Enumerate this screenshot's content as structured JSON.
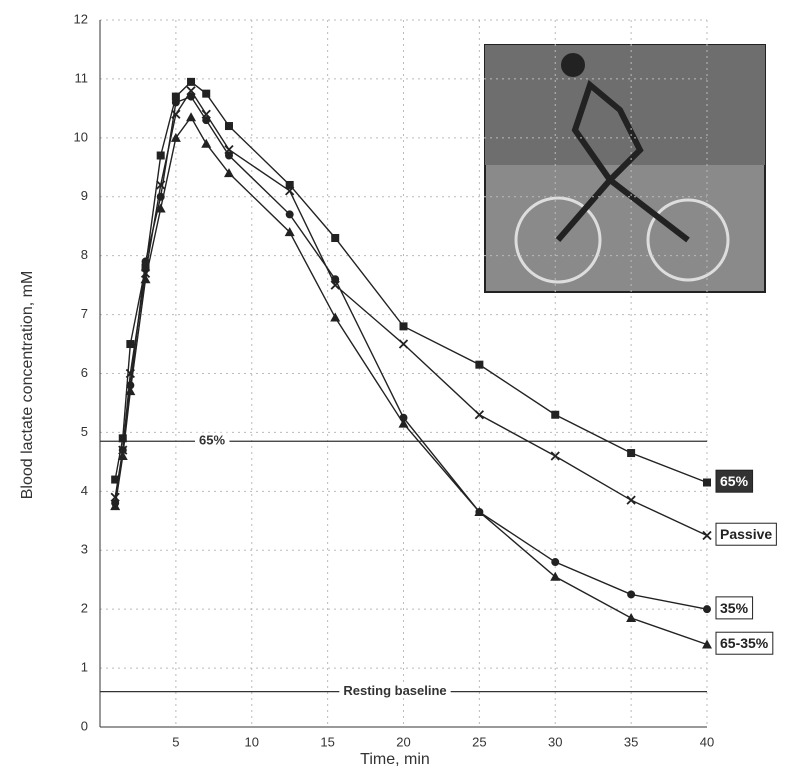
{
  "chart_data": {
    "type": "line",
    "y_label": "Blood lactate concentration, mM",
    "x_label": "Time, min",
    "x": [
      1,
      1.5,
      2,
      3,
      4,
      5,
      6,
      7,
      8.5,
      12.5,
      15.5,
      20,
      25,
      30,
      35,
      40
    ],
    "series": [
      {
        "name": "65%",
        "color": "#222222",
        "marker": "square",
        "values": [
          4.2,
          4.9,
          6.5,
          7.8,
          9.7,
          10.7,
          10.95,
          10.75,
          10.2,
          9.2,
          8.3,
          6.8,
          6.15,
          5.3,
          4.65,
          4.15
        ]
      },
      {
        "name": "Passive",
        "color": "#222222",
        "marker": "cross",
        "values": [
          3.9,
          4.7,
          6.0,
          7.7,
          9.2,
          10.4,
          10.8,
          10.4,
          9.8,
          9.1,
          7.5,
          6.5,
          5.3,
          4.6,
          3.85,
          3.25
        ]
      },
      {
        "name": "35%",
        "color": "#222222",
        "marker": "circle",
        "values": [
          3.8,
          4.7,
          5.8,
          7.9,
          9.0,
          10.6,
          10.7,
          10.3,
          9.7,
          8.7,
          7.6,
          5.25,
          3.65,
          2.8,
          2.25,
          2.0
        ]
      },
      {
        "name": "65-35%",
        "color": "#222222",
        "marker": "triangle",
        "values": [
          3.75,
          4.6,
          5.7,
          7.6,
          8.8,
          10.0,
          10.35,
          9.9,
          9.4,
          8.4,
          6.95,
          5.15,
          3.65,
          2.55,
          1.85,
          1.4
        ]
      }
    ],
    "reference_lines": [
      {
        "value": 4.85,
        "label": "65%"
      },
      {
        "value": 0.6,
        "label": "Resting baseline"
      }
    ],
    "xlim": [
      0,
      40
    ],
    "xticks": [
      5,
      10,
      15,
      20,
      25,
      30,
      35,
      40
    ],
    "ylim": [
      0,
      12
    ],
    "yticks": [
      0,
      1,
      2,
      3,
      4,
      5,
      6,
      7,
      8,
      9,
      10,
      11,
      12
    ],
    "grid": true
  }
}
